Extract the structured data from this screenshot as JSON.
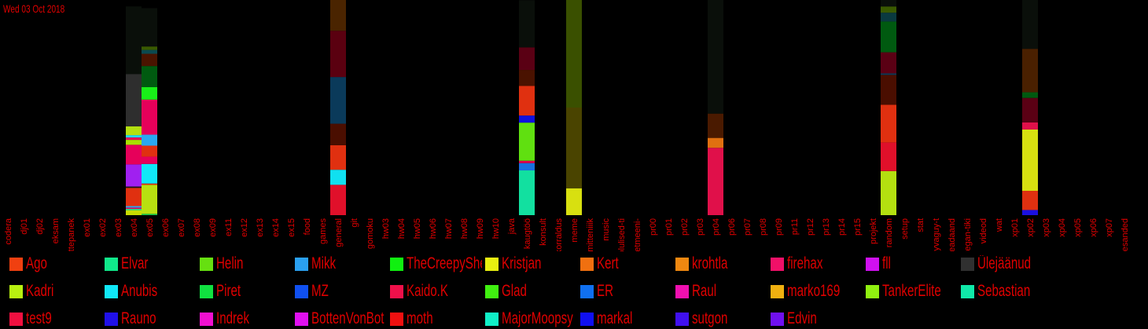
{
  "date": "Wed 03 Oct 2018",
  "chart_data": {
    "type": "bar",
    "stacked": true,
    "categories": [
      "codera",
      "dj01",
      "dj02",
      "eksam",
      "ettepanek",
      "ex01",
      "ex02",
      "ex03",
      "ex04",
      "ex05",
      "ex06",
      "ex07",
      "ex08",
      "ex09",
      "ex11",
      "ex12",
      "ex13",
      "ex14",
      "ex15",
      "food",
      "games",
      "general",
      "git",
      "gomoku",
      "hw03",
      "hw04",
      "hw05",
      "hw06",
      "hw07",
      "hw08",
      "hw09",
      "hw10",
      "java",
      "kaugtöö",
      "konsult",
      "korraldus",
      "meme",
      "mitteniiik",
      "music",
      "olulised-ti",
      "petmeeni-",
      "pr00",
      "pr01",
      "pr02",
      "pr03",
      "pr04",
      "pr06",
      "pr07",
      "pr08",
      "pr09",
      "pr11",
      "pr12",
      "pr13",
      "pr14",
      "pr15",
      "projekt",
      "random",
      "setup",
      "stat",
      "syvaguy-t",
      "teadaand",
      "vegan-tiki",
      "videod",
      "wat",
      "xp01",
      "xp02",
      "xp03",
      "xp04",
      "xp05",
      "xp06",
      "xp07",
      "ülesanded"
    ],
    "ylim": [
      0,
      100
    ],
    "stacks": [
      {
        "category": "ex04",
        "segments": [
          {
            "color": "#c8dc00",
            "value": 2.3
          },
          {
            "color": "#1ef596",
            "value": 0.6
          },
          {
            "color": "#e6005a",
            "value": 0.6
          },
          {
            "color": "#2aa8f0",
            "value": 0.7
          },
          {
            "color": "#e03010",
            "value": 8.5
          },
          {
            "color": "#1a1414",
            "value": 0.6
          },
          {
            "color": "#a020f0",
            "value": 10.3
          },
          {
            "color": "#e6005a",
            "value": 9.1
          },
          {
            "color": "#a8e000",
            "value": 2.3
          },
          {
            "color": "#e6005a",
            "value": 1.1
          },
          {
            "color": "#20d8f0",
            "value": 1.1
          },
          {
            "color": "#b4e010",
            "value": 4.1
          },
          {
            "color": "#2e2e2e",
            "value": 24.3
          },
          {
            "color": "#0a0f0a",
            "value": 31.4
          }
        ]
      },
      {
        "category": "ex05",
        "segments": [
          {
            "color": "#12c84c",
            "value": 0.6
          },
          {
            "color": "#b8e010",
            "value": 13.5
          },
          {
            "color": "#e03010",
            "value": 0.6
          },
          {
            "color": "#10e8f8",
            "value": 9.1
          },
          {
            "color": "#e6005a",
            "value": 3.4
          },
          {
            "color": "#e03010",
            "value": 5.1
          },
          {
            "color": "#2aa8f0",
            "value": 5.1
          },
          {
            "color": "#e6005a",
            "value": 16.3
          },
          {
            "color": "#18f018",
            "value": 5.8
          },
          {
            "color": "#005a10",
            "value": 9.8
          },
          {
            "color": "#4a1400",
            "value": 5.7
          },
          {
            "color": "#0a4a50",
            "value": 1.8
          },
          {
            "color": "#3a5a00",
            "value": 1.6
          },
          {
            "color": "#0a0f0a",
            "value": 17.8
          }
        ]
      },
      {
        "category": "general",
        "segments": [
          {
            "color": "#e0102a",
            "value": 14.1
          },
          {
            "color": "#10e0f0",
            "value": 7.0
          },
          {
            "color": "#e03010",
            "value": 11.4
          },
          {
            "color": "#4a0e00",
            "value": 10.0
          },
          {
            "color": "#0a3a5a",
            "value": 21.7
          },
          {
            "color": "#5a0010",
            "value": 21.5
          },
          {
            "color": "#4a2400",
            "value": 14.3
          }
        ]
      },
      {
        "category": "kaugtöö",
        "segments": [
          {
            "color": "#12e0a0",
            "value": 20.8
          },
          {
            "color": "#1870e0",
            "value": 3.4
          },
          {
            "color": "#e6004a",
            "value": 1.1
          },
          {
            "color": "#60e010",
            "value": 17.7
          },
          {
            "color": "#1010e0",
            "value": 3.3
          },
          {
            "color": "#e03010",
            "value": 13.8
          },
          {
            "color": "#4a1200",
            "value": 7.4
          },
          {
            "color": "#5a0014",
            "value": 10.5
          },
          {
            "color": "#0a0f0a",
            "value": 21.9
          }
        ]
      },
      {
        "category": "meme",
        "segments": [
          {
            "color": "#d8e010",
            "value": 12.5
          },
          {
            "color": "#4a4400",
            "value": 37.5
          },
          {
            "color": "#3a5000",
            "value": 50.0
          }
        ]
      },
      {
        "category": "pr04",
        "segments": [
          {
            "color": "#e0104a",
            "value": 31.3
          },
          {
            "color": "#e07010",
            "value": 4.6
          },
          {
            "color": "#4a1a00",
            "value": 11.3
          },
          {
            "color": "#0a0f0a",
            "value": 52.8
          }
        ]
      },
      {
        "category": "random",
        "segments": [
          {
            "color": "#b4e010",
            "value": 20.5
          },
          {
            "color": "#e0102a",
            "value": 13.3
          },
          {
            "color": "#e03010",
            "value": 17.5
          },
          {
            "color": "#4a0e00",
            "value": 13.9
          },
          {
            "color": "#0a3a5a",
            "value": 0.7
          },
          {
            "color": "#5a0014",
            "value": 9.8
          },
          {
            "color": "#005a10",
            "value": 14.3
          },
          {
            "color": "#0a3a40",
            "value": 4.1
          },
          {
            "color": "#3a5a00",
            "value": 2.9
          },
          {
            "color": "#0a0f0a",
            "value": 3.0
          }
        ]
      },
      {
        "category": "xp02",
        "segments": [
          {
            "color": "#1a10e0",
            "value": 2.4
          },
          {
            "color": "#e03010",
            "value": 8.9
          },
          {
            "color": "#d8e010",
            "value": 28.5
          },
          {
            "color": "#e0104a",
            "value": 3.3
          },
          {
            "color": "#5a0014",
            "value": 11.4
          },
          {
            "color": "#005a10",
            "value": 2.6
          },
          {
            "color": "#4a2000",
            "value": 20.2
          },
          {
            "color": "#0a0f0a",
            "value": 22.7
          }
        ]
      }
    ],
    "legend": [
      {
        "name": "Ago",
        "color": "#f04010"
      },
      {
        "name": "Elvar",
        "color": "#10e88a"
      },
      {
        "name": "Helin",
        "color": "#66e010"
      },
      {
        "name": "Mikk",
        "color": "#2aa0f0"
      },
      {
        "name": "TheCreepySheep",
        "color": "#10f010"
      },
      {
        "name": "Kristjan",
        "color": "#e8f010"
      },
      {
        "name": "Kert",
        "color": "#f07010"
      },
      {
        "name": "krohtla",
        "color": "#f08810"
      },
      {
        "name": "firehax",
        "color": "#f01068"
      },
      {
        "name": "fll",
        "color": "#d010f0"
      },
      {
        "name": "Ülejäänud",
        "color": "#303030"
      },
      {
        "name": "Kadri",
        "color": "#b8f010"
      },
      {
        "name": "Anubis",
        "color": "#10e8f8"
      },
      {
        "name": "Piret",
        "color": "#10e040"
      },
      {
        "name": "MZ",
        "color": "#1050f0"
      },
      {
        "name": "Kaido.K",
        "color": "#f0104a"
      },
      {
        "name": "Glad",
        "color": "#40f010"
      },
      {
        "name": "ER",
        "color": "#1070f0"
      },
      {
        "name": "Raul",
        "color": "#f010b0"
      },
      {
        "name": "marko169",
        "color": "#f0b010"
      },
      {
        "name": "TankerElite",
        "color": "#90f010"
      },
      {
        "name": "Sebastian",
        "color": "#10e8a8"
      },
      {
        "name": "test9",
        "color": "#f01040"
      },
      {
        "name": "Rauno",
        "color": "#2010e8"
      },
      {
        "name": "Indrek",
        "color": "#f010d0"
      },
      {
        "name": "BottenVonBot",
        "color": "#e010f0"
      },
      {
        "name": "moth",
        "color": "#f01010"
      },
      {
        "name": "MajorMoopsy",
        "color": "#10f0c8"
      },
      {
        "name": "markal",
        "color": "#1010f0"
      },
      {
        "name": "sutgon",
        "color": "#4010f0"
      },
      {
        "name": "Edvin",
        "color": "#7010f0"
      }
    ]
  }
}
